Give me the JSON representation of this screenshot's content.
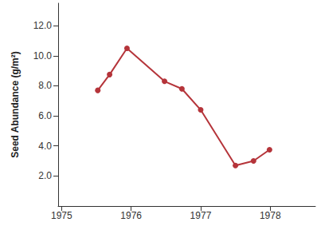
{
  "chart_data": {
    "type": "line",
    "y_label": "Seed Abundance (g/m²)",
    "x": [
      1975.52,
      1975.69,
      1975.94,
      1976.48,
      1976.73,
      1977.0,
      1977.5,
      1977.76,
      1977.99
    ],
    "values": [
      7.7,
      8.75,
      10.5,
      8.3,
      7.8,
      6.4,
      2.7,
      3.0,
      3.75
    ],
    "color": "#b5343a",
    "marker": "circle",
    "line_style": "solid",
    "xlim": [
      1974.95,
      1978.65
    ],
    "xticks": [
      1975,
      1976,
      1977,
      1978
    ],
    "ylim": [
      0,
      13.5
    ],
    "yticks": [
      {
        "value": 2,
        "label": "2.0"
      },
      {
        "value": 4,
        "label": "4.0"
      },
      {
        "value": 6,
        "label": "6.0"
      },
      {
        "value": 8,
        "label": "8.0"
      },
      {
        "value": 10,
        "label": "10.0"
      },
      {
        "value": 12,
        "label": "12.0"
      }
    ],
    "grid": false
  }
}
